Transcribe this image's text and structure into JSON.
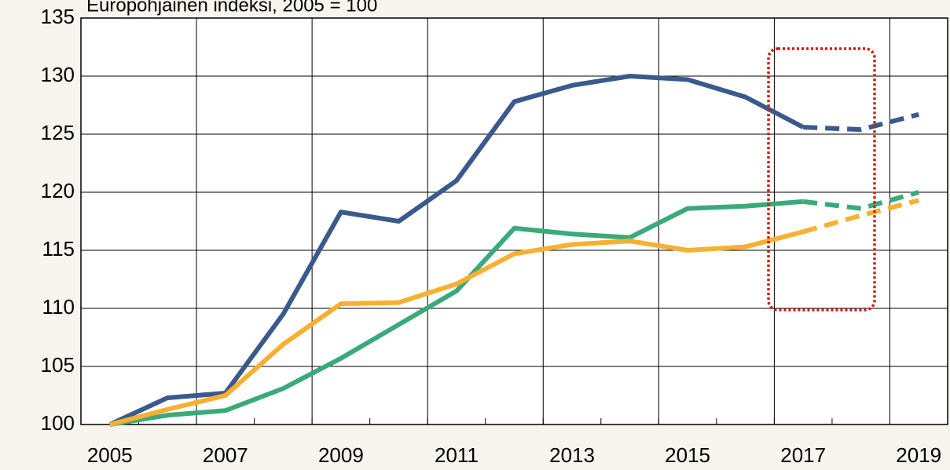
{
  "chart_data": {
    "type": "line",
    "title": "Europohjainen indeksi, 2005 = 100",
    "categories": [
      "2005",
      null,
      "2007",
      null,
      "2009",
      null,
      "2011",
      null,
      "2013",
      null,
      "2015",
      null,
      "2017",
      null,
      "2019"
    ],
    "series": [
      {
        "color": "#3a5a8c",
        "values": [
          100,
          102.3,
          102.7,
          109.5,
          118.3,
          117.5,
          121.0,
          127.8,
          129.2,
          130.0,
          129.7,
          128.2,
          125.6,
          125.4,
          126.7
        ]
      },
      {
        "color": "#3aaa7a",
        "values": [
          100,
          100.8,
          101.2,
          103.1,
          105.7,
          108.6,
          111.5,
          116.9,
          116.4,
          116.1,
          118.6,
          118.8,
          119.2,
          118.6,
          120.0
        ]
      },
      {
        "color": "#f7b032",
        "values": [
          100,
          101.3,
          102.5,
          106.9,
          110.4,
          110.5,
          112.1,
          114.7,
          115.5,
          115.8,
          115.0,
          115.3,
          116.6,
          118.0,
          119.3
        ]
      }
    ],
    "dashed_from": 12,
    "ylim": [
      100,
      135
    ],
    "yticks": [
      100,
      105,
      110,
      115,
      120,
      125,
      130,
      135
    ],
    "grid": true
  }
}
